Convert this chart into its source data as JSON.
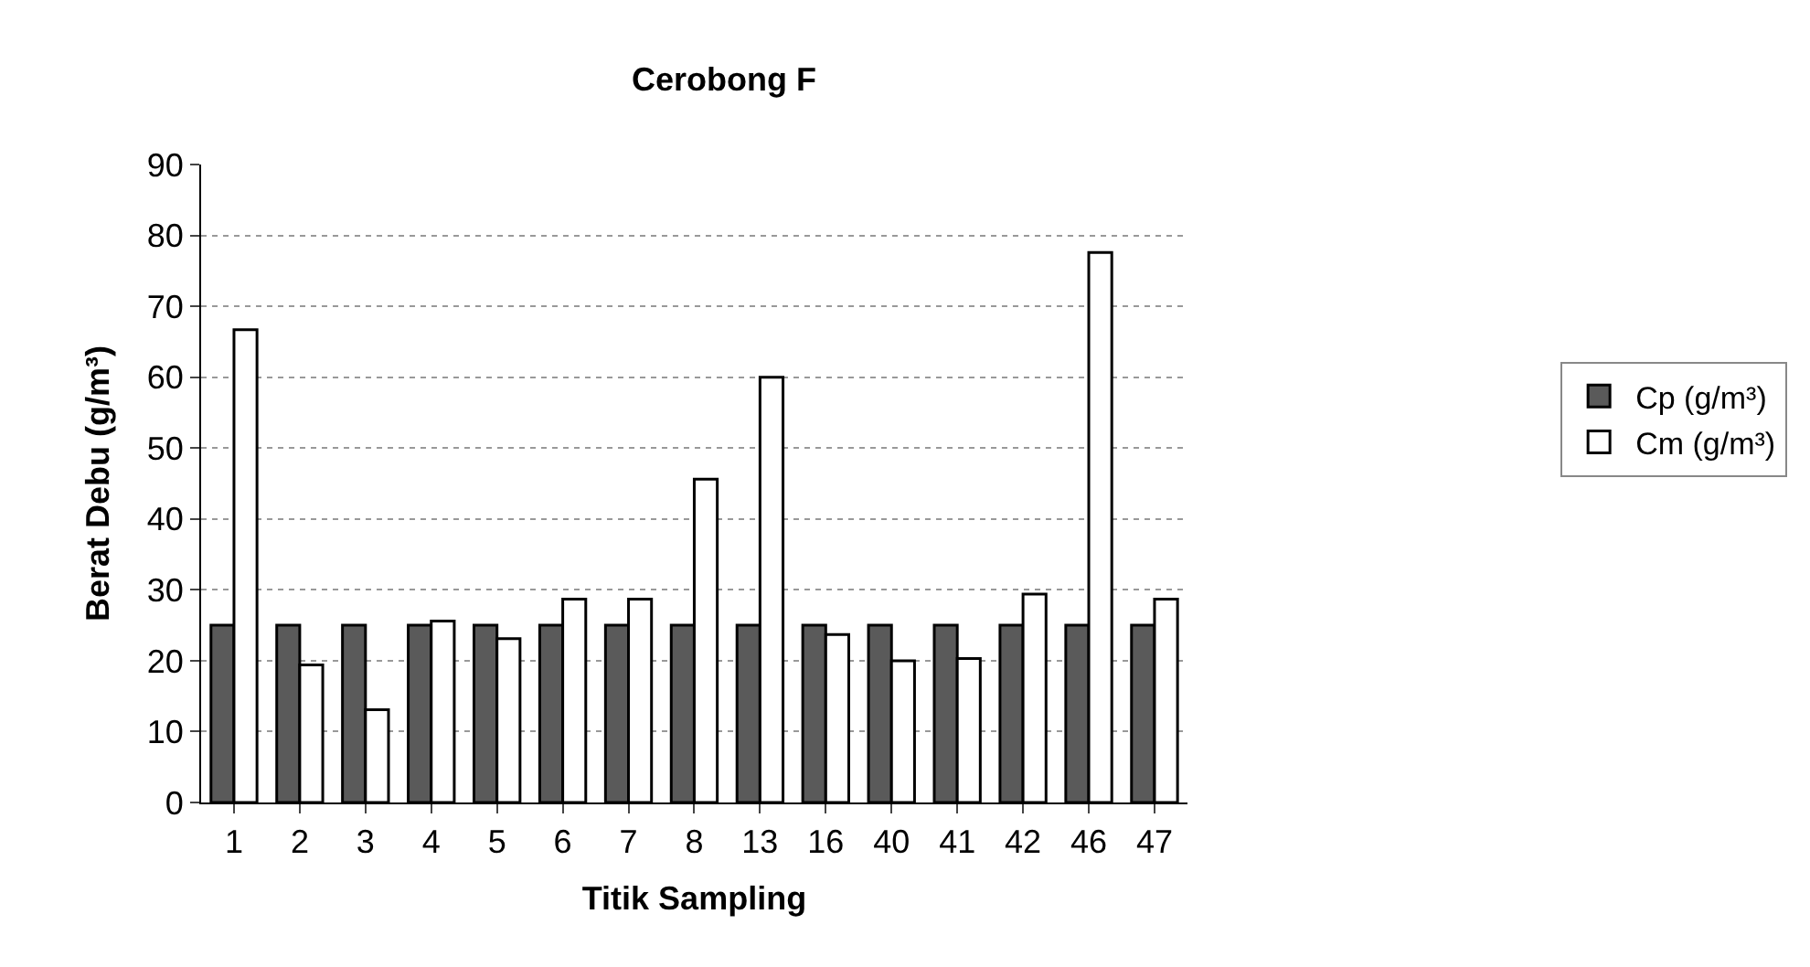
{
  "chart_data": {
    "type": "bar",
    "title": "Cerobong F",
    "xlabel": "Titik Sampling",
    "ylabel": "Berat Debu (g/m³)",
    "categories": [
      "1",
      "2",
      "3",
      "4",
      "5",
      "6",
      "7",
      "8",
      "13",
      "16",
      "40",
      "41",
      "42",
      "46",
      "47"
    ],
    "series": [
      {
        "name": "Cp (g/m³)",
        "color": "#5a5a5a",
        "values": [
          25,
          25,
          25,
          25,
          25,
          25,
          25,
          25,
          25,
          25,
          25,
          25,
          25,
          25,
          25
        ]
      },
      {
        "name": "Cm (g/m³)",
        "color": "#ffffff",
        "values": [
          66.7,
          19.4,
          13.1,
          25.6,
          23.1,
          28.7,
          28.7,
          45.6,
          60,
          23.7,
          20,
          20.3,
          29.4,
          77.6,
          28.7
        ]
      }
    ],
    "ylim": [
      0,
      90
    ],
    "yticks": [
      0,
      10,
      20,
      30,
      40,
      50,
      60,
      70,
      80,
      90
    ],
    "grid": "y",
    "legend": "right"
  }
}
